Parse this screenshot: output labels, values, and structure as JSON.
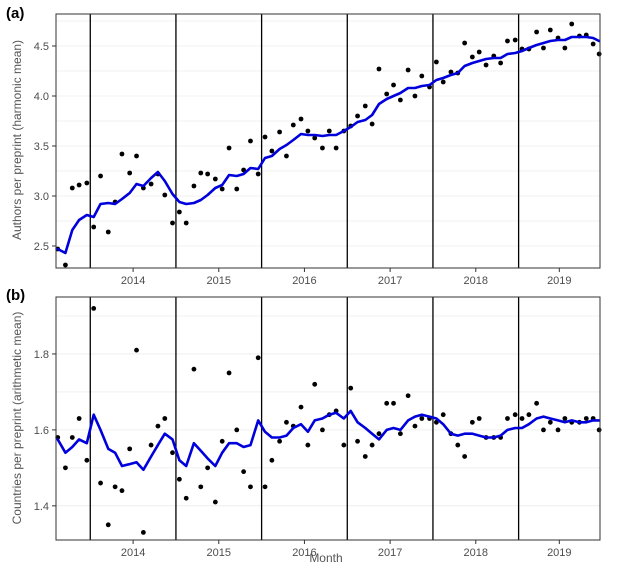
{
  "chart_data": [
    {
      "type": "scatter",
      "panel": "(a)",
      "ylabel": "Authors per preprint (harmonic mean)",
      "xlabel": "",
      "x_categories": [
        "2014",
        "2015",
        "2016",
        "2017",
        "2018",
        "2019"
      ],
      "x_range": [
        2013.6,
        2019.95
      ],
      "ylim": [
        2.28,
        4.82
      ],
      "yticks": [
        2.5,
        3.0,
        3.5,
        4.0,
        4.5
      ],
      "ytick_labels": [
        "2.5",
        "3.0",
        "3.5",
        "4.0",
        "4.5"
      ],
      "year_boundaries": [
        2014.0,
        2015.0,
        2016.0,
        2017.0,
        2018.0,
        2019.0
      ],
      "grid": true,
      "series": [
        {
          "kind": "points",
          "x": [
            2013.62,
            2013.71,
            2013.79,
            2013.87,
            2013.96,
            2014.04,
            2014.12,
            2014.21,
            2014.29,
            2014.37,
            2014.46,
            2014.54,
            2014.62,
            2014.71,
            2014.79,
            2014.87,
            2014.96,
            2015.04,
            2015.12,
            2015.21,
            2015.29,
            2015.37,
            2015.46,
            2015.54,
            2015.62,
            2015.71,
            2015.79,
            2015.87,
            2015.96,
            2016.04,
            2016.12,
            2016.21,
            2016.29,
            2016.37,
            2016.46,
            2016.54,
            2016.62,
            2016.71,
            2016.79,
            2016.87,
            2016.96,
            2017.04,
            2017.12,
            2017.21,
            2017.29,
            2017.37,
            2017.46,
            2017.54,
            2017.62,
            2017.71,
            2017.79,
            2017.87,
            2017.96,
            2018.04,
            2018.12,
            2018.21,
            2018.29,
            2018.37,
            2018.46,
            2018.54,
            2018.62,
            2018.71,
            2018.79,
            2018.87,
            2018.96,
            2019.04,
            2019.12,
            2019.21,
            2019.29,
            2019.37,
            2019.46,
            2019.54,
            2019.62,
            2019.71,
            2019.79,
            2019.87,
            2019.94
          ],
          "y": [
            2.47,
            2.31,
            3.08,
            3.11,
            3.13,
            2.69,
            3.2,
            2.64,
            2.94,
            3.42,
            3.23,
            3.4,
            3.08,
            3.12,
            3.22,
            3.01,
            2.73,
            2.84,
            2.73,
            3.1,
            3.23,
            3.22,
            3.17,
            3.07,
            3.48,
            3.07,
            3.26,
            3.55,
            3.22,
            3.59,
            3.45,
            3.64,
            3.4,
            3.71,
            3.77,
            3.65,
            3.58,
            3.48,
            3.65,
            3.48,
            3.65,
            3.7,
            3.8,
            3.9,
            3.72,
            4.27,
            4.02,
            4.11,
            3.96,
            4.26,
            4.0,
            4.2,
            4.09,
            4.34,
            4.14,
            4.24,
            4.23,
            4.53,
            4.39,
            4.44,
            4.31,
            4.4,
            4.33,
            4.55,
            4.56,
            4.47,
            4.47,
            4.64,
            4.48,
            4.66,
            4.58,
            4.48,
            4.72,
            4.6,
            4.61,
            4.52,
            4.42
          ]
        },
        {
          "kind": "trend",
          "color": "#0000dd",
          "x": [
            2013.62,
            2013.71,
            2013.79,
            2013.87,
            2013.96,
            2014.04,
            2014.12,
            2014.21,
            2014.29,
            2014.37,
            2014.46,
            2014.54,
            2014.62,
            2014.71,
            2014.79,
            2014.87,
            2014.96,
            2015.04,
            2015.12,
            2015.21,
            2015.29,
            2015.37,
            2015.46,
            2015.54,
            2015.62,
            2015.71,
            2015.79,
            2015.87,
            2015.96,
            2016.04,
            2016.12,
            2016.21,
            2016.29,
            2016.37,
            2016.46,
            2016.54,
            2016.62,
            2016.71,
            2016.79,
            2016.87,
            2016.96,
            2017.04,
            2017.12,
            2017.21,
            2017.29,
            2017.37,
            2017.46,
            2017.54,
            2017.62,
            2017.71,
            2017.79,
            2017.87,
            2017.96,
            2018.04,
            2018.12,
            2018.21,
            2018.29,
            2018.37,
            2018.46,
            2018.54,
            2018.62,
            2018.71,
            2018.79,
            2018.87,
            2018.96,
            2019.04,
            2019.12,
            2019.21,
            2019.29,
            2019.37,
            2019.46,
            2019.54,
            2019.62,
            2019.71,
            2019.79,
            2019.87,
            2019.94
          ],
          "y": [
            2.47,
            2.43,
            2.66,
            2.76,
            2.81,
            2.79,
            2.92,
            2.93,
            2.92,
            2.97,
            3.03,
            3.12,
            3.1,
            3.18,
            3.24,
            3.15,
            3.02,
            2.94,
            2.92,
            2.93,
            2.96,
            3.01,
            3.08,
            3.11,
            3.21,
            3.2,
            3.22,
            3.28,
            3.27,
            3.38,
            3.4,
            3.47,
            3.51,
            3.56,
            3.62,
            3.61,
            3.61,
            3.6,
            3.61,
            3.61,
            3.65,
            3.69,
            3.74,
            3.76,
            3.81,
            3.92,
            3.97,
            4.0,
            4.03,
            4.08,
            4.08,
            4.1,
            4.11,
            4.16,
            4.18,
            4.21,
            4.23,
            4.3,
            4.33,
            4.35,
            4.37,
            4.38,
            4.38,
            4.42,
            4.43,
            4.45,
            4.48,
            4.51,
            4.53,
            4.55,
            4.56,
            4.56,
            4.59,
            4.59,
            4.59,
            4.58,
            4.55
          ]
        }
      ]
    },
    {
      "type": "scatter",
      "panel": "(b)",
      "ylabel": "Countries per preprint (arithmetic mean)",
      "xlabel": "Month",
      "x_categories": [
        "2014",
        "2015",
        "2016",
        "2017",
        "2018",
        "2019"
      ],
      "x_range": [
        2013.6,
        2019.95
      ],
      "ylim": [
        1.31,
        1.95
      ],
      "yticks": [
        1.4,
        1.6,
        1.8
      ],
      "ytick_labels": [
        "1.4",
        "1.6",
        "1.8"
      ],
      "year_boundaries": [
        2014.0,
        2015.0,
        2016.0,
        2017.0,
        2018.0,
        2019.0
      ],
      "grid": true,
      "series": [
        {
          "kind": "points",
          "x": [
            2013.62,
            2013.71,
            2013.79,
            2013.87,
            2013.96,
            2014.04,
            2014.12,
            2014.21,
            2014.29,
            2014.37,
            2014.46,
            2014.54,
            2014.62,
            2014.71,
            2014.79,
            2014.87,
            2014.96,
            2015.04,
            2015.12,
            2015.21,
            2015.29,
            2015.37,
            2015.46,
            2015.54,
            2015.62,
            2015.71,
            2015.79,
            2015.87,
            2015.96,
            2016.04,
            2016.12,
            2016.21,
            2016.29,
            2016.37,
            2016.46,
            2016.54,
            2016.62,
            2016.71,
            2016.79,
            2016.87,
            2016.96,
            2017.04,
            2017.12,
            2017.21,
            2017.29,
            2017.37,
            2017.46,
            2017.54,
            2017.62,
            2017.71,
            2017.79,
            2017.87,
            2017.96,
            2018.04,
            2018.12,
            2018.21,
            2018.29,
            2018.37,
            2018.46,
            2018.54,
            2018.62,
            2018.71,
            2018.79,
            2018.87,
            2018.96,
            2019.04,
            2019.12,
            2019.21,
            2019.29,
            2019.37,
            2019.46,
            2019.54,
            2019.62,
            2019.71,
            2019.79,
            2019.87,
            2019.94
          ],
          "y": [
            1.58,
            1.5,
            1.58,
            1.63,
            1.52,
            1.92,
            1.46,
            1.35,
            1.45,
            1.44,
            1.55,
            1.81,
            1.33,
            1.56,
            1.61,
            1.63,
            1.54,
            1.47,
            1.42,
            1.76,
            1.45,
            1.5,
            1.41,
            1.57,
            1.75,
            1.6,
            1.49,
            1.45,
            1.79,
            1.45,
            1.52,
            1.57,
            1.62,
            1.61,
            1.66,
            1.56,
            1.72,
            1.6,
            1.64,
            1.65,
            1.56,
            1.71,
            1.57,
            1.53,
            1.56,
            1.59,
            1.67,
            1.67,
            1.59,
            1.69,
            1.61,
            1.63,
            1.63,
            1.62,
            1.64,
            1.59,
            1.56,
            1.53,
            1.62,
            1.63,
            1.58,
            1.58,
            1.58,
            1.63,
            1.64,
            1.63,
            1.64,
            1.67,
            1.6,
            1.62,
            1.6,
            1.63,
            1.62,
            1.62,
            1.63,
            1.63,
            1.6
          ]
        },
        {
          "kind": "trend",
          "color": "#0000dd",
          "x": [
            2013.62,
            2013.71,
            2013.79,
            2013.87,
            2013.96,
            2014.04,
            2014.12,
            2014.21,
            2014.29,
            2014.37,
            2014.46,
            2014.54,
            2014.62,
            2014.71,
            2014.79,
            2014.87,
            2014.96,
            2015.04,
            2015.12,
            2015.21,
            2015.29,
            2015.37,
            2015.46,
            2015.54,
            2015.62,
            2015.71,
            2015.79,
            2015.87,
            2015.96,
            2016.04,
            2016.12,
            2016.21,
            2016.29,
            2016.37,
            2016.46,
            2016.54,
            2016.62,
            2016.71,
            2016.79,
            2016.87,
            2016.96,
            2017.04,
            2017.12,
            2017.21,
            2017.29,
            2017.37,
            2017.46,
            2017.54,
            2017.62,
            2017.71,
            2017.79,
            2017.87,
            2017.96,
            2018.04,
            2018.12,
            2018.21,
            2018.29,
            2018.37,
            2018.46,
            2018.54,
            2018.62,
            2018.71,
            2018.79,
            2018.87,
            2018.96,
            2019.04,
            2019.12,
            2019.21,
            2019.29,
            2019.37,
            2019.46,
            2019.54,
            2019.62,
            2019.71,
            2019.79,
            2019.87,
            2019.94
          ],
          "y": [
            1.575,
            1.54,
            1.555,
            1.575,
            1.565,
            1.64,
            1.6,
            1.55,
            1.54,
            1.505,
            1.51,
            1.515,
            1.495,
            1.53,
            1.56,
            1.59,
            1.575,
            1.52,
            1.505,
            1.565,
            1.545,
            1.525,
            1.505,
            1.54,
            1.565,
            1.565,
            1.555,
            1.56,
            1.625,
            1.595,
            1.58,
            1.58,
            1.585,
            1.605,
            1.615,
            1.595,
            1.625,
            1.63,
            1.64,
            1.645,
            1.63,
            1.65,
            1.62,
            1.605,
            1.59,
            1.575,
            1.6,
            1.605,
            1.6,
            1.625,
            1.635,
            1.64,
            1.635,
            1.63,
            1.615,
            1.59,
            1.585,
            1.59,
            1.59,
            1.585,
            1.58,
            1.58,
            1.585,
            1.6,
            1.605,
            1.605,
            1.615,
            1.63,
            1.635,
            1.63,
            1.625,
            1.62,
            1.625,
            1.62,
            1.62,
            1.625,
            1.625
          ]
        }
      ]
    }
  ]
}
